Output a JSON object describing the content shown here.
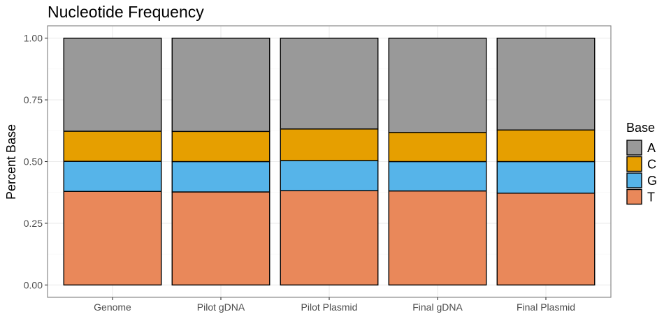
{
  "chart_data": {
    "type": "bar",
    "stacked": true,
    "title": "Nucleotide Frequency",
    "xlabel": "",
    "ylabel": "Percent Base",
    "ylim": [
      -0.05,
      1.05
    ],
    "yticks": [
      0,
      0.25,
      0.5,
      0.75,
      1
    ],
    "ytick_labels": [
      "0.00",
      "0.25",
      "0.50",
      "0.75",
      "1.00"
    ],
    "grid": true,
    "legend": {
      "title": "Base",
      "position": "right"
    },
    "categories": [
      "Genome",
      "Pilot gDNA",
      "Pilot Plasmid",
      "Final gDNA",
      "Final Plasmid"
    ],
    "series": [
      {
        "name": "T",
        "color": "#E9885A",
        "values": [
          0.379,
          0.377,
          0.382,
          0.381,
          0.372
        ]
      },
      {
        "name": "G",
        "color": "#56B4E9",
        "values": [
          0.122,
          0.123,
          0.122,
          0.119,
          0.128
        ]
      },
      {
        "name": "C",
        "color": "#E69F00",
        "values": [
          0.122,
          0.122,
          0.128,
          0.118,
          0.128
        ]
      },
      {
        "name": "A",
        "color": "#999999",
        "values": [
          0.377,
          0.378,
          0.368,
          0.382,
          0.372
        ]
      }
    ],
    "legend_order": [
      "A",
      "C",
      "G",
      "T"
    ]
  }
}
